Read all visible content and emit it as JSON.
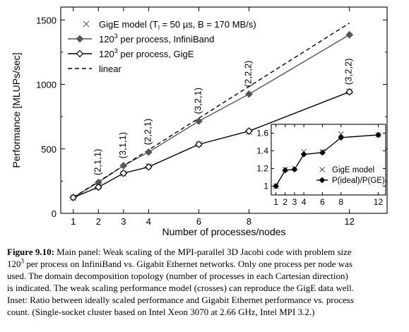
{
  "chart_data": [
    {
      "type": "line",
      "title": "",
      "xlabel": "Number of processes/nodes",
      "ylabel": "Performance [MLUPs/sec]",
      "xlim": [
        0.5,
        13.5
      ],
      "ylim": [
        0,
        1600
      ],
      "xticks": [
        1,
        2,
        3,
        4,
        6,
        8,
        12
      ],
      "yticks": [
        0,
        500,
        1000,
        1500
      ],
      "grid": false,
      "legend_position": "top-left",
      "series": [
        {
          "name": "GigE model (T_l = 50 µs, B = 170 MB/s)",
          "legend": {
            "pre": "GigE model (T",
            "sub": "l",
            "post": " = 50 µs, B = 170 MB/s)"
          },
          "marker": "x",
          "line": "none",
          "color": "#555555",
          "x": [
            1,
            2,
            3,
            4,
            6,
            8,
            12
          ],
          "y": [
            121,
            206,
            309,
            365,
            537,
            632,
            945
          ]
        },
        {
          "name": "120³ per process, InfiniBand",
          "legend": {
            "pre": "120",
            "sup": "3",
            "post": " per process, InfiniBand"
          },
          "marker": "diamond-filled",
          "line": "solid",
          "color": "#555555",
          "x": [
            1,
            2,
            3,
            4,
            6,
            8,
            12
          ],
          "y": [
            123,
            240,
            370,
            475,
            715,
            925,
            1385
          ]
        },
        {
          "name": "120³ per process, GigE",
          "legend": {
            "pre": "120",
            "sup": "3",
            "post": " per process, GigE"
          },
          "marker": "diamond-open",
          "line": "solid",
          "color": "#000000",
          "x": [
            1,
            2,
            3,
            4,
            6,
            8,
            12
          ],
          "y": [
            123,
            203,
            311,
            360,
            535,
            638,
            942
          ]
        },
        {
          "name": "linear",
          "legend": {
            "pre": "linear",
            "sup": "",
            "post": ""
          },
          "marker": "none",
          "line": "dashed",
          "color": "#000000",
          "x": [
            1,
            12
          ],
          "y": [
            123,
            1476
          ]
        }
      ],
      "annotations": [
        {
          "text": "(2,1,1)",
          "x": 2,
          "y": 240
        },
        {
          "text": "(3,1,1)",
          "x": 3,
          "y": 370
        },
        {
          "text": "(2,2,1)",
          "x": 4,
          "y": 475
        },
        {
          "text": "(3,2,1)",
          "x": 6,
          "y": 715
        },
        {
          "text": "(2,2,2)",
          "x": 8,
          "y": 925
        },
        {
          "text": "(3,2,2)",
          "x": 12,
          "y": 942
        }
      ]
    },
    {
      "type": "line",
      "title": "",
      "xlabel": "",
      "ylabel": "",
      "xlim": [
        0.5,
        12.8
      ],
      "ylim": [
        0.9,
        1.7
      ],
      "xticks": [
        1,
        2,
        3,
        4,
        6,
        8,
        12
      ],
      "yticks": [
        1,
        1.2,
        1.4,
        1.6
      ],
      "ytick_labels": [
        "1",
        "1.2",
        "1.4",
        "1.6"
      ],
      "grid": false,
      "legend_position": "center-right",
      "series": [
        {
          "name": "GigE model",
          "marker": "x",
          "line": "none",
          "color": "#555555",
          "x": [
            1,
            2,
            3,
            4,
            6,
            8,
            12
          ],
          "y": [
            1.0,
            1.19,
            1.2,
            1.39,
            1.39,
            1.59,
            1.58
          ]
        },
        {
          "name": "P(ideal)/P(GE)",
          "marker": "diamond-filled",
          "line": "solid",
          "color": "#000000",
          "x": [
            1,
            2,
            3,
            4,
            6,
            8,
            12
          ],
          "y": [
            1.0,
            1.18,
            1.19,
            1.36,
            1.38,
            1.55,
            1.58
          ]
        }
      ]
    }
  ],
  "caption": {
    "label": "Figure 9.10:",
    "line1": " Main panel: Weak scaling of the MPI-parallel 3D Jacobi code with problem size",
    "line2_num": "120",
    "line2_sup": "3",
    "line2_rest": " per process on InfiniBand vs. Gigabit Ethernet networks. Only one process per node was",
    "line3": "used. The domain decomposition topology (number of processes in each Cartesian direction)",
    "line4": "is indicated. The weak scaling performance model (crosses) can reproduce the GigE data well.",
    "line5": "Inset: Ratio between ideally scaled performance and Gigabit Ethernet performance vs. process",
    "line6": "count. (Single-socket cluster based on Intel Xeon 3070 at 2.66 GHz, Intel MPI 3.2.)"
  }
}
